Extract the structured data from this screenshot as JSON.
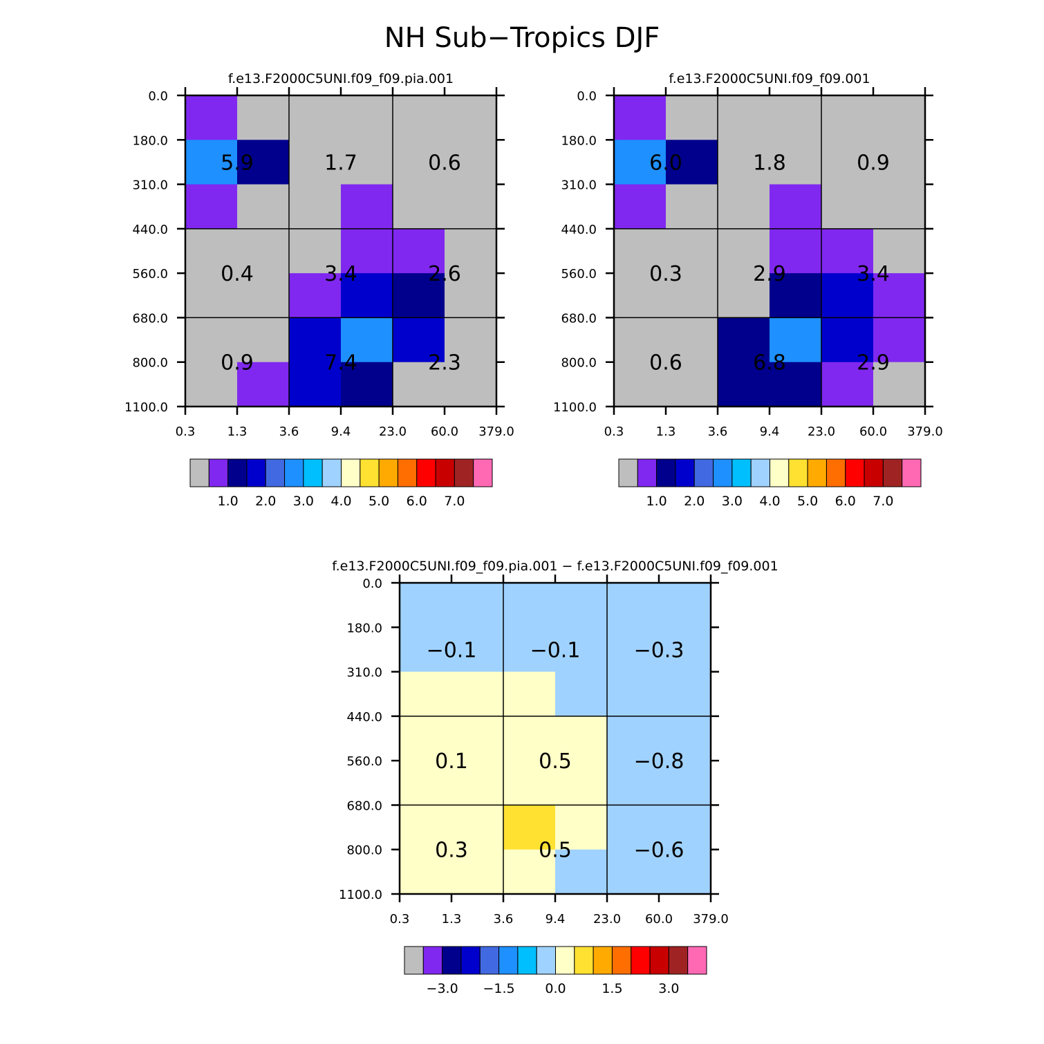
{
  "main_title": "NH Sub−Tropics DJF",
  "colormap": [
    "#bebebe",
    "#8028f0",
    "#00008c",
    "#0000cd",
    "#4169e1",
    "#1e90ff",
    "#00bfff",
    "#a0d2ff",
    "#ffffc8",
    "#ffe132",
    "#ffaa00",
    "#ff6e00",
    "#ff0000",
    "#c80000",
    "#a02323",
    "#ff69b4"
  ],
  "chart_data": [
    {
      "type": "heatmap",
      "title": "f.e13.F2000C5UNI.f09_f09.pia.001",
      "x_ticks": [
        "0.3",
        "1.3",
        "3.6",
        "9.4",
        "23.0",
        "60.0",
        "379.0"
      ],
      "y_ticks": [
        "0.0",
        "180.0",
        "310.0",
        "440.0",
        "560.0",
        "680.0",
        "800.0",
        "1100.0"
      ],
      "cell_colors": [
        [
          "#8028f0",
          "#bebebe",
          "#bebebe",
          "#bebebe",
          "#bebebe",
          "#bebebe"
        ],
        [
          "#1e90ff",
          "#00008c",
          "#bebebe",
          "#bebebe",
          "#bebebe",
          "#bebebe"
        ],
        [
          "#8028f0",
          "#bebebe",
          "#bebebe",
          "#8028f0",
          "#bebebe",
          "#bebebe"
        ],
        [
          "#bebebe",
          "#bebebe",
          "#bebebe",
          "#8028f0",
          "#8028f0",
          "#bebebe"
        ],
        [
          "#bebebe",
          "#bebebe",
          "#8028f0",
          "#0000cd",
          "#00008c",
          "#bebebe"
        ],
        [
          "#bebebe",
          "#bebebe",
          "#0000cd",
          "#1e90ff",
          "#0000cd",
          "#bebebe"
        ],
        [
          "#bebebe",
          "#8028f0",
          "#0000cd",
          "#00008c",
          "#bebebe",
          "#bebebe"
        ]
      ],
      "totals": [
        [
          "5.9",
          "1.7",
          "0.6"
        ],
        [
          "0.4",
          "3.4",
          "2.6"
        ],
        [
          "0.9",
          "7.4",
          "2.3"
        ]
      ],
      "colorbar_labels": [
        "1.0",
        "2.0",
        "3.0",
        "4.0",
        "5.0",
        "6.0",
        "7.0"
      ]
    },
    {
      "type": "heatmap",
      "title": "f.e13.F2000C5UNI.f09_f09.001",
      "x_ticks": [
        "0.3",
        "1.3",
        "3.6",
        "9.4",
        "23.0",
        "60.0",
        "379.0"
      ],
      "y_ticks": [
        "0.0",
        "180.0",
        "310.0",
        "440.0",
        "560.0",
        "680.0",
        "800.0",
        "1100.0"
      ],
      "cell_colors": [
        [
          "#8028f0",
          "#bebebe",
          "#bebebe",
          "#bebebe",
          "#bebebe",
          "#bebebe"
        ],
        [
          "#1e90ff",
          "#00008c",
          "#bebebe",
          "#bebebe",
          "#bebebe",
          "#bebebe"
        ],
        [
          "#8028f0",
          "#bebebe",
          "#bebebe",
          "#8028f0",
          "#bebebe",
          "#bebebe"
        ],
        [
          "#bebebe",
          "#bebebe",
          "#bebebe",
          "#8028f0",
          "#8028f0",
          "#bebebe"
        ],
        [
          "#bebebe",
          "#bebebe",
          "#bebebe",
          "#00008c",
          "#0000cd",
          "#8028f0"
        ],
        [
          "#bebebe",
          "#bebebe",
          "#00008c",
          "#1e90ff",
          "#0000cd",
          "#8028f0"
        ],
        [
          "#bebebe",
          "#bebebe",
          "#00008c",
          "#00008c",
          "#8028f0",
          "#bebebe"
        ]
      ],
      "totals": [
        [
          "6.0",
          "1.8",
          "0.9"
        ],
        [
          "0.3",
          "2.9",
          "3.4"
        ],
        [
          "0.6",
          "6.8",
          "2.9"
        ]
      ],
      "colorbar_labels": [
        "1.0",
        "2.0",
        "3.0",
        "4.0",
        "5.0",
        "6.0",
        "7.0"
      ]
    },
    {
      "type": "heatmap",
      "title": "f.e13.F2000C5UNI.f09_f09.pia.001 − f.e13.F2000C5UNI.f09_f09.001",
      "x_ticks": [
        "0.3",
        "1.3",
        "3.6",
        "9.4",
        "23.0",
        "60.0",
        "379.0"
      ],
      "y_ticks": [
        "0.0",
        "180.0",
        "310.0",
        "440.0",
        "560.0",
        "680.0",
        "800.0",
        "1100.0"
      ],
      "cell_colors": [
        [
          "#a0d2ff",
          "#a0d2ff",
          "#a0d2ff",
          "#a0d2ff",
          "#a0d2ff",
          "#a0d2ff"
        ],
        [
          "#a0d2ff",
          "#a0d2ff",
          "#a0d2ff",
          "#a0d2ff",
          "#a0d2ff",
          "#a0d2ff"
        ],
        [
          "#ffffc8",
          "#ffffc8",
          "#ffffc8",
          "#a0d2ff",
          "#a0d2ff",
          "#a0d2ff"
        ],
        [
          "#ffffc8",
          "#ffffc8",
          "#ffffc8",
          "#ffffc8",
          "#a0d2ff",
          "#a0d2ff"
        ],
        [
          "#ffffc8",
          "#ffffc8",
          "#ffffc8",
          "#ffffc8",
          "#a0d2ff",
          "#a0d2ff"
        ],
        [
          "#ffffc8",
          "#ffffc8",
          "#ffe132",
          "#ffffc8",
          "#a0d2ff",
          "#a0d2ff"
        ],
        [
          "#ffffc8",
          "#ffffc8",
          "#ffffc8",
          "#a0d2ff",
          "#a0d2ff",
          "#a0d2ff"
        ]
      ],
      "totals": [
        [
          "−0.1",
          "−0.1",
          "−0.3"
        ],
        [
          "0.1",
          "0.5",
          "−0.8"
        ],
        [
          "0.3",
          "0.5",
          "−0.6"
        ]
      ],
      "colorbar_labels": [
        "−3.0",
        "−1.5",
        "0.0",
        "1.5",
        "3.0"
      ]
    }
  ]
}
